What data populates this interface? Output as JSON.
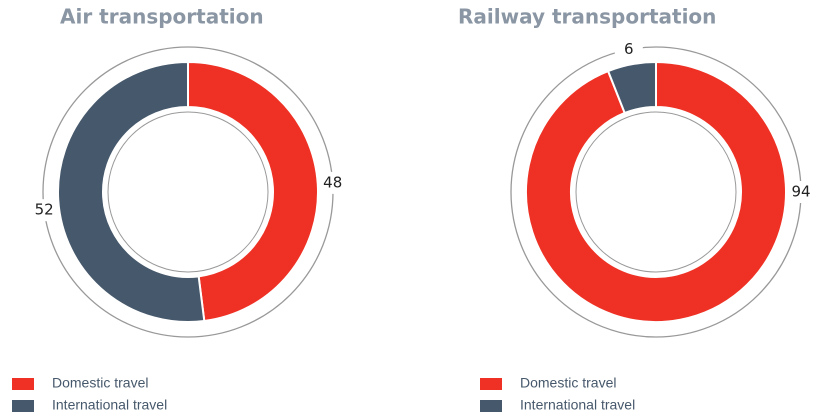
{
  "chart_data": [
    {
      "type": "pie",
      "title": "Air transportation",
      "categories": [
        "Domestic travel",
        "International travel"
      ],
      "values": [
        48,
        52
      ],
      "colors": [
        "#ee3124",
        "#46586b"
      ]
    },
    {
      "type": "pie",
      "title": "Railway transportation",
      "categories": [
        "Domestic travel",
        "International travel"
      ],
      "values": [
        94,
        6
      ],
      "colors": [
        "#ee3124",
        "#46586b"
      ]
    }
  ]
}
